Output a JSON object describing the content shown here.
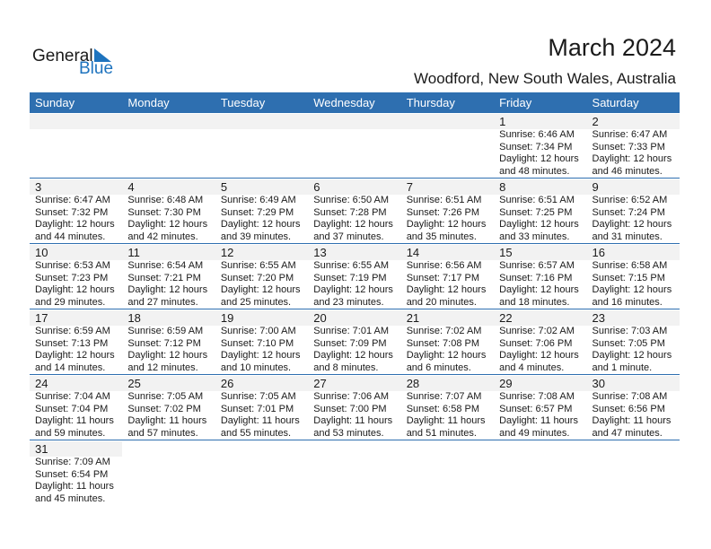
{
  "logo": {
    "text_general": "General",
    "text_blue": "Blue"
  },
  "title": "March 2024",
  "location": "Woodford, New South Wales, Australia",
  "colors": {
    "header": "#2e6fb0",
    "band": "#f2f2f2",
    "brand": "#1e73be"
  },
  "weekdays": [
    "Sunday",
    "Monday",
    "Tuesday",
    "Wednesday",
    "Thursday",
    "Friday",
    "Saturday"
  ],
  "weeks": [
    [
      null,
      null,
      null,
      null,
      null,
      {
        "day": "1",
        "sunrise": "Sunrise: 6:46 AM",
        "sunset": "Sunset: 7:34 PM",
        "daylight1": "Daylight: 12 hours",
        "daylight2": "and 48 minutes."
      },
      {
        "day": "2",
        "sunrise": "Sunrise: 6:47 AM",
        "sunset": "Sunset: 7:33 PM",
        "daylight1": "Daylight: 12 hours",
        "daylight2": "and 46 minutes."
      }
    ],
    [
      {
        "day": "3",
        "sunrise": "Sunrise: 6:47 AM",
        "sunset": "Sunset: 7:32 PM",
        "daylight1": "Daylight: 12 hours",
        "daylight2": "and 44 minutes."
      },
      {
        "day": "4",
        "sunrise": "Sunrise: 6:48 AM",
        "sunset": "Sunset: 7:30 PM",
        "daylight1": "Daylight: 12 hours",
        "daylight2": "and 42 minutes."
      },
      {
        "day": "5",
        "sunrise": "Sunrise: 6:49 AM",
        "sunset": "Sunset: 7:29 PM",
        "daylight1": "Daylight: 12 hours",
        "daylight2": "and 39 minutes."
      },
      {
        "day": "6",
        "sunrise": "Sunrise: 6:50 AM",
        "sunset": "Sunset: 7:28 PM",
        "daylight1": "Daylight: 12 hours",
        "daylight2": "and 37 minutes."
      },
      {
        "day": "7",
        "sunrise": "Sunrise: 6:51 AM",
        "sunset": "Sunset: 7:26 PM",
        "daylight1": "Daylight: 12 hours",
        "daylight2": "and 35 minutes."
      },
      {
        "day": "8",
        "sunrise": "Sunrise: 6:51 AM",
        "sunset": "Sunset: 7:25 PM",
        "daylight1": "Daylight: 12 hours",
        "daylight2": "and 33 minutes."
      },
      {
        "day": "9",
        "sunrise": "Sunrise: 6:52 AM",
        "sunset": "Sunset: 7:24 PM",
        "daylight1": "Daylight: 12 hours",
        "daylight2": "and 31 minutes."
      }
    ],
    [
      {
        "day": "10",
        "sunrise": "Sunrise: 6:53 AM",
        "sunset": "Sunset: 7:23 PM",
        "daylight1": "Daylight: 12 hours",
        "daylight2": "and 29 minutes."
      },
      {
        "day": "11",
        "sunrise": "Sunrise: 6:54 AM",
        "sunset": "Sunset: 7:21 PM",
        "daylight1": "Daylight: 12 hours",
        "daylight2": "and 27 minutes."
      },
      {
        "day": "12",
        "sunrise": "Sunrise: 6:55 AM",
        "sunset": "Sunset: 7:20 PM",
        "daylight1": "Daylight: 12 hours",
        "daylight2": "and 25 minutes."
      },
      {
        "day": "13",
        "sunrise": "Sunrise: 6:55 AM",
        "sunset": "Sunset: 7:19 PM",
        "daylight1": "Daylight: 12 hours",
        "daylight2": "and 23 minutes."
      },
      {
        "day": "14",
        "sunrise": "Sunrise: 6:56 AM",
        "sunset": "Sunset: 7:17 PM",
        "daylight1": "Daylight: 12 hours",
        "daylight2": "and 20 minutes."
      },
      {
        "day": "15",
        "sunrise": "Sunrise: 6:57 AM",
        "sunset": "Sunset: 7:16 PM",
        "daylight1": "Daylight: 12 hours",
        "daylight2": "and 18 minutes."
      },
      {
        "day": "16",
        "sunrise": "Sunrise: 6:58 AM",
        "sunset": "Sunset: 7:15 PM",
        "daylight1": "Daylight: 12 hours",
        "daylight2": "and 16 minutes."
      }
    ],
    [
      {
        "day": "17",
        "sunrise": "Sunrise: 6:59 AM",
        "sunset": "Sunset: 7:13 PM",
        "daylight1": "Daylight: 12 hours",
        "daylight2": "and 14 minutes."
      },
      {
        "day": "18",
        "sunrise": "Sunrise: 6:59 AM",
        "sunset": "Sunset: 7:12 PM",
        "daylight1": "Daylight: 12 hours",
        "daylight2": "and 12 minutes."
      },
      {
        "day": "19",
        "sunrise": "Sunrise: 7:00 AM",
        "sunset": "Sunset: 7:10 PM",
        "daylight1": "Daylight: 12 hours",
        "daylight2": "and 10 minutes."
      },
      {
        "day": "20",
        "sunrise": "Sunrise: 7:01 AM",
        "sunset": "Sunset: 7:09 PM",
        "daylight1": "Daylight: 12 hours",
        "daylight2": "and 8 minutes."
      },
      {
        "day": "21",
        "sunrise": "Sunrise: 7:02 AM",
        "sunset": "Sunset: 7:08 PM",
        "daylight1": "Daylight: 12 hours",
        "daylight2": "and 6 minutes."
      },
      {
        "day": "22",
        "sunrise": "Sunrise: 7:02 AM",
        "sunset": "Sunset: 7:06 PM",
        "daylight1": "Daylight: 12 hours",
        "daylight2": "and 4 minutes."
      },
      {
        "day": "23",
        "sunrise": "Sunrise: 7:03 AM",
        "sunset": "Sunset: 7:05 PM",
        "daylight1": "Daylight: 12 hours",
        "daylight2": "and 1 minute."
      }
    ],
    [
      {
        "day": "24",
        "sunrise": "Sunrise: 7:04 AM",
        "sunset": "Sunset: 7:04 PM",
        "daylight1": "Daylight: 11 hours",
        "daylight2": "and 59 minutes."
      },
      {
        "day": "25",
        "sunrise": "Sunrise: 7:05 AM",
        "sunset": "Sunset: 7:02 PM",
        "daylight1": "Daylight: 11 hours",
        "daylight2": "and 57 minutes."
      },
      {
        "day": "26",
        "sunrise": "Sunrise: 7:05 AM",
        "sunset": "Sunset: 7:01 PM",
        "daylight1": "Daylight: 11 hours",
        "daylight2": "and 55 minutes."
      },
      {
        "day": "27",
        "sunrise": "Sunrise: 7:06 AM",
        "sunset": "Sunset: 7:00 PM",
        "daylight1": "Daylight: 11 hours",
        "daylight2": "and 53 minutes."
      },
      {
        "day": "28",
        "sunrise": "Sunrise: 7:07 AM",
        "sunset": "Sunset: 6:58 PM",
        "daylight1": "Daylight: 11 hours",
        "daylight2": "and 51 minutes."
      },
      {
        "day": "29",
        "sunrise": "Sunrise: 7:08 AM",
        "sunset": "Sunset: 6:57 PM",
        "daylight1": "Daylight: 11 hours",
        "daylight2": "and 49 minutes."
      },
      {
        "day": "30",
        "sunrise": "Sunrise: 7:08 AM",
        "sunset": "Sunset: 6:56 PM",
        "daylight1": "Daylight: 11 hours",
        "daylight2": "and 47 minutes."
      }
    ],
    [
      {
        "day": "31",
        "sunrise": "Sunrise: 7:09 AM",
        "sunset": "Sunset: 6:54 PM",
        "daylight1": "Daylight: 11 hours",
        "daylight2": "and 45 minutes."
      }
    ]
  ]
}
